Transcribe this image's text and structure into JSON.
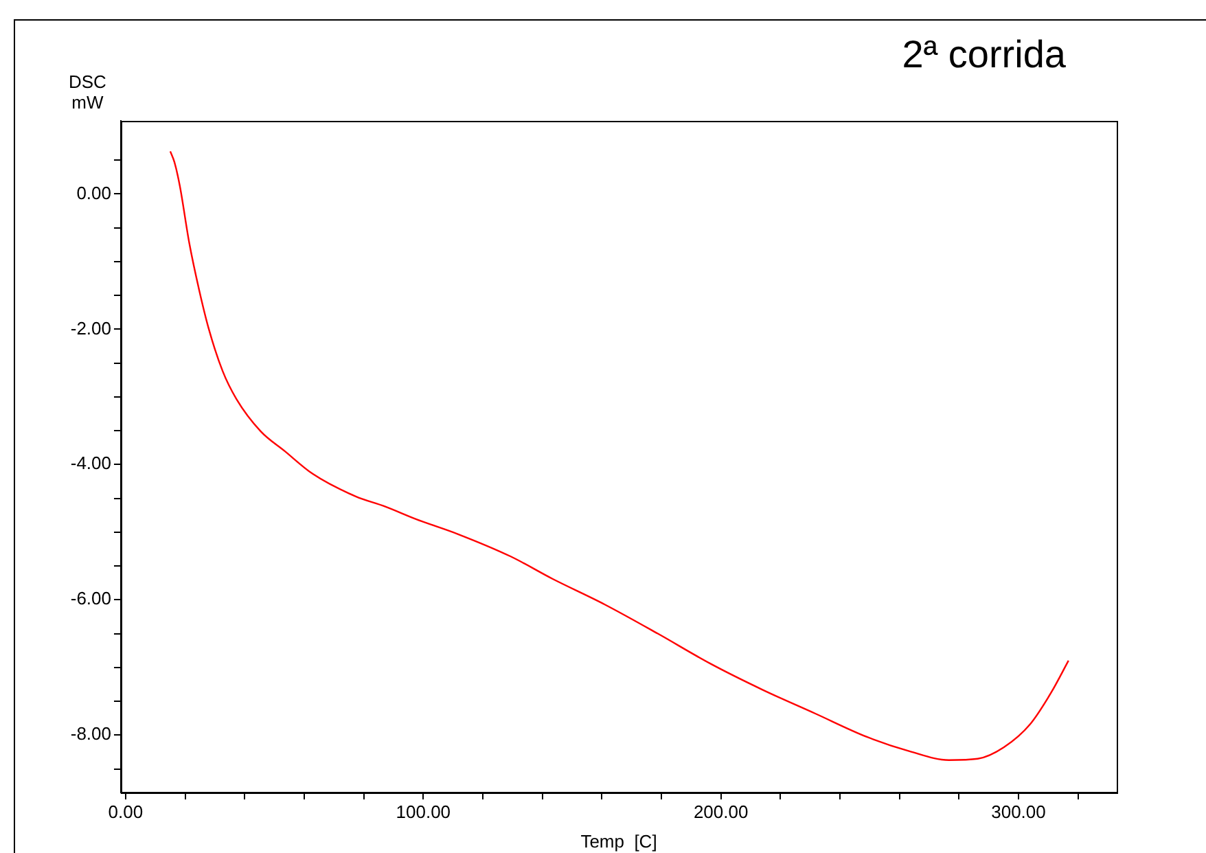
{
  "chart_data": {
    "type": "line",
    "title": "2ª corrida",
    "ylabel": "DSC\nmW",
    "xlabel": "Temp  [C]",
    "x": [
      15.0,
      16.4,
      18.2,
      21.4,
      24.7,
      27.9,
      32.6,
      37.2,
      45.4,
      53.4,
      62.9,
      77.2,
      87.1,
      97.7,
      111.7,
      129.4,
      143.4,
      161,
      178.8,
      196.3,
      214,
      231.6,
      249.2,
      263.4,
      276.6,
      286.3,
      295.1,
      303.9,
      311,
      316.8
    ],
    "series": [
      {
        "color": "#ff0000",
        "values": [
          0.63,
          0.47,
          0.12,
          -0.73,
          -1.42,
          -1.99,
          -2.62,
          -3.03,
          -3.51,
          -3.8,
          -4.14,
          -4.47,
          -4.62,
          -4.81,
          -5.03,
          -5.36,
          -5.69,
          -6.07,
          -6.5,
          -6.94,
          -7.33,
          -7.68,
          -8.03,
          -8.24,
          -8.37,
          -8.35,
          -8.18,
          -7.84,
          -7.37,
          -6.9
        ]
      }
    ],
    "xlim": [
      -1.6,
      333
    ],
    "ylim": [
      -8.85,
      1.08
    ],
    "xticks": [
      {
        "value": 0,
        "label": "0.00"
      },
      {
        "value": 20,
        "label": null
      },
      {
        "value": 40,
        "label": null
      },
      {
        "value": 60,
        "label": null
      },
      {
        "value": 80,
        "label": null
      },
      {
        "value": 100,
        "label": "100.00"
      },
      {
        "value": 120,
        "label": null
      },
      {
        "value": 140,
        "label": null
      },
      {
        "value": 160,
        "label": null
      },
      {
        "value": 180,
        "label": null
      },
      {
        "value": 200,
        "label": "200.00"
      },
      {
        "value": 220,
        "label": null
      },
      {
        "value": 240,
        "label": null
      },
      {
        "value": 260,
        "label": null
      },
      {
        "value": 280,
        "label": null
      },
      {
        "value": 300,
        "label": "300.00"
      },
      {
        "value": 320,
        "label": null
      }
    ],
    "yticks": [
      {
        "value": 0.5,
        "label": null
      },
      {
        "value": 0,
        "label": "0.00"
      },
      {
        "value": -0.5,
        "label": null
      },
      {
        "value": -1,
        "label": null
      },
      {
        "value": -1.5,
        "label": null
      },
      {
        "value": -2,
        "label": "-2.00"
      },
      {
        "value": -2.5,
        "label": null
      },
      {
        "value": -3,
        "label": null
      },
      {
        "value": -3.5,
        "label": null
      },
      {
        "value": -4,
        "label": "-4.00"
      },
      {
        "value": -4.5,
        "label": null
      },
      {
        "value": -5,
        "label": null
      },
      {
        "value": -5.5,
        "label": null
      },
      {
        "value": -6,
        "label": "-6.00"
      },
      {
        "value": -6.5,
        "label": null
      },
      {
        "value": -7,
        "label": null
      },
      {
        "value": -7.5,
        "label": null
      },
      {
        "value": -8,
        "label": "-8.00"
      },
      {
        "value": -8.5,
        "label": null
      }
    ],
    "grid": false,
    "legend": false,
    "marker": "none",
    "line_style": "solid"
  }
}
